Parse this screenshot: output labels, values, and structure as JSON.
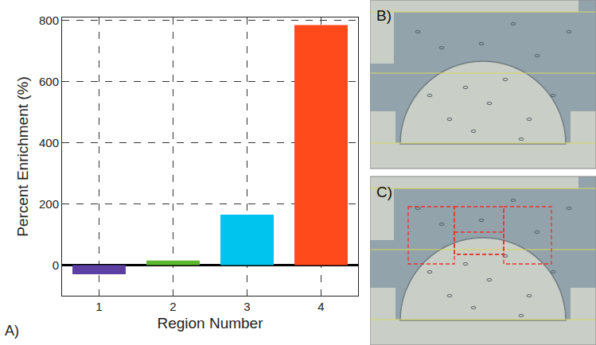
{
  "chart_data": {
    "type": "bar",
    "x_label": "Region Number",
    "y_label": "Percent Enrichment (%)",
    "categories": [
      "1",
      "2",
      "3",
      "4"
    ],
    "values": [
      -30,
      15,
      165,
      785
    ],
    "colors": [
      "#5b3fa3",
      "#5cb82e",
      "#00c3ee",
      "#ff4a1c"
    ],
    "ylim": [
      -100,
      810
    ],
    "yticks": [
      0,
      200,
      400,
      600,
      800
    ],
    "grid": true,
    "annotations": [
      "A)"
    ]
  },
  "images": [
    {
      "label": "B)"
    },
    {
      "label": "C)"
    }
  ]
}
